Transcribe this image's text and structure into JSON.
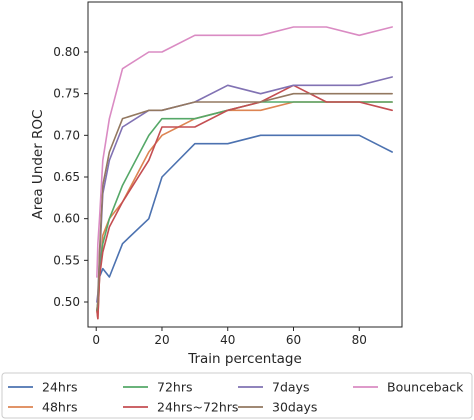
{
  "chart_data": {
    "type": "line",
    "xlabel": "Train percentage",
    "ylabel": "Area Under ROC",
    "xlim": [
      -2.5,
      93
    ],
    "ylim": [
      0.47,
      0.86
    ],
    "xticks": [
      0,
      20,
      40,
      60,
      80
    ],
    "xtick_labels": [
      "0",
      "20",
      "40",
      "60",
      "80"
    ],
    "yticks": [
      0.5,
      0.55,
      0.6,
      0.65,
      0.7,
      0.75,
      0.8
    ],
    "ytick_labels": [
      "0.50",
      "0.55",
      "0.60",
      "0.65",
      "0.70",
      "0.75",
      "0.80"
    ],
    "grid": false,
    "legend_placement": "bottom",
    "x": [
      0.2,
      0.5,
      1,
      2,
      4,
      8,
      16,
      20,
      30,
      40,
      50,
      60,
      70,
      80,
      90
    ],
    "series": [
      {
        "name": "24hrs",
        "color": "#4c72b0",
        "values": [
          0.49,
          0.49,
          0.53,
          0.54,
          0.53,
          0.57,
          0.6,
          0.65,
          0.69,
          0.69,
          0.7,
          0.7,
          0.7,
          0.7,
          0.68
        ]
      },
      {
        "name": "48hrs",
        "color": "#dd8452",
        "values": [
          0.49,
          0.48,
          0.53,
          0.58,
          0.6,
          0.62,
          0.68,
          0.7,
          0.72,
          0.73,
          0.73,
          0.74,
          0.74,
          0.74,
          0.74
        ]
      },
      {
        "name": "72hrs",
        "color": "#55a868",
        "values": [
          0.49,
          0.5,
          0.54,
          0.57,
          0.6,
          0.64,
          0.7,
          0.72,
          0.72,
          0.73,
          0.74,
          0.74,
          0.74,
          0.74,
          0.74
        ]
      },
      {
        "name": "24hrs~72hrs",
        "color": "#c44e52",
        "values": [
          0.49,
          0.48,
          0.53,
          0.56,
          0.59,
          0.62,
          0.67,
          0.71,
          0.71,
          0.73,
          0.74,
          0.76,
          0.74,
          0.74,
          0.73
        ]
      },
      {
        "name": "7days",
        "color": "#8172b3",
        "values": [
          0.5,
          0.51,
          0.55,
          0.63,
          0.67,
          0.71,
          0.73,
          0.73,
          0.74,
          0.76,
          0.75,
          0.76,
          0.76,
          0.76,
          0.77
        ]
      },
      {
        "name": "30days",
        "color": "#937860",
        "values": [
          0.49,
          0.5,
          0.56,
          0.64,
          0.68,
          0.72,
          0.73,
          0.73,
          0.74,
          0.74,
          0.74,
          0.75,
          0.75,
          0.75,
          0.75
        ]
      },
      {
        "name": "Bounceback",
        "color": "#da8bc3",
        "values": [
          0.53,
          0.57,
          0.6,
          0.67,
          0.72,
          0.78,
          0.8,
          0.8,
          0.82,
          0.82,
          0.82,
          0.83,
          0.83,
          0.82,
          0.83
        ]
      }
    ],
    "legend_order": [
      "24hrs",
      "72hrs",
      "7days",
      "Bounceback",
      "48hrs",
      "24hrs~72hrs",
      "30days"
    ]
  }
}
